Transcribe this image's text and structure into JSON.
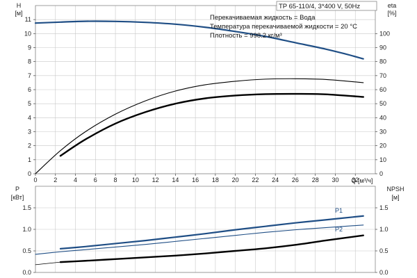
{
  "header": {
    "model": "TP 65-110/4, 3*400 V, 50Hz"
  },
  "info": {
    "line1": "Перекачиваемая жидкость = Вода",
    "line2": "Температура перекачиваемой жидкости = 20 °C",
    "line3": "Плотность = 998.2 кг/м³"
  },
  "colors": {
    "blue": "#1f4e85",
    "black": "#000000",
    "grid": "#c8c8c8",
    "frame": "#888888"
  },
  "chart_data": [
    {
      "type": "line",
      "panel": "top",
      "xlabel": "Q [м³/ч]",
      "ylabel_left": "H\n[м]",
      "ylabel_right": "eta\n[%]",
      "xlim": [
        0,
        34
      ],
      "ylim_left": [
        0,
        12
      ],
      "ylim_right": [
        0,
        120
      ],
      "x_ticks": [
        0,
        2,
        4,
        6,
        8,
        10,
        12,
        14,
        16,
        18,
        20,
        22,
        24,
        26,
        28,
        30,
        32
      ],
      "y_ticks_left": [
        0,
        1,
        2,
        3,
        4,
        5,
        6,
        7,
        8,
        9,
        10,
        11
      ],
      "y_ticks_right": [
        0,
        10,
        20,
        30,
        40,
        50,
        60,
        70,
        80,
        90,
        100
      ],
      "grid": true,
      "series": [
        {
          "axis": "left",
          "color": "blue",
          "width": 2.2,
          "x": [
            0,
            2.5,
            5,
            8,
            11,
            14,
            17,
            20,
            23,
            26,
            29,
            31,
            32.8
          ],
          "y": [
            10.75,
            10.82,
            10.88,
            10.87,
            10.8,
            10.67,
            10.45,
            10.15,
            9.8,
            9.35,
            8.9,
            8.55,
            8.2
          ]
        },
        {
          "axis": "right",
          "color": "black",
          "width": 1.1,
          "x": [
            0,
            2.5,
            5,
            8,
            11,
            14,
            17,
            20,
            23,
            26,
            29,
            32.8
          ],
          "y": [
            0,
            16.5,
            30,
            42.5,
            52,
            59,
            63.5,
            66,
            67.5,
            67.8,
            67.3,
            65
          ]
        },
        {
          "axis": "right",
          "color": "black",
          "width": 2.4,
          "x": [
            2.5,
            5,
            8,
            11,
            14,
            17,
            20,
            23,
            26,
            29,
            32.8
          ],
          "y": [
            12.8,
            24.5,
            35.8,
            44,
            50,
            53.8,
            55.8,
            56.8,
            57,
            56.7,
            54.8
          ]
        }
      ]
    },
    {
      "type": "line",
      "panel": "bottom",
      "ylabel_left": "P\n[кВт]",
      "ylabel_right": "NPSH\n[м]",
      "xlim": [
        0,
        34
      ],
      "ylim_left": [
        0,
        2.0
      ],
      "ylim_right": [
        0,
        2.0
      ],
      "y_ticks_left": [
        "0.0",
        "0.5",
        "1.0",
        "1.5"
      ],
      "y_ticks_right": [
        "0.0",
        "0.5",
        "1.0",
        "1.5"
      ],
      "grid": true,
      "series": [
        {
          "name": "P1",
          "axis": "left",
          "color": "blue",
          "width": 2.2,
          "x": [
            2.5,
            5,
            8,
            11,
            14,
            17,
            20,
            23,
            26,
            29,
            32.8
          ],
          "y": [
            0.55,
            0.6,
            0.67,
            0.74,
            0.82,
            0.9,
            0.99,
            1.07,
            1.15,
            1.22,
            1.31
          ]
        },
        {
          "name": "P2",
          "axis": "left",
          "color": "blue",
          "width": 1.1,
          "x": [
            0,
            2.5,
            5,
            8,
            11,
            14,
            17,
            20,
            23,
            26,
            29,
            32.8
          ],
          "y": [
            0.42,
            0.48,
            0.53,
            0.59,
            0.65,
            0.72,
            0.79,
            0.86,
            0.93,
            0.99,
            1.04,
            1.1
          ]
        },
        {
          "axis": "left",
          "color": "black",
          "width": 2.4,
          "x": [
            2.5,
            5,
            8,
            11,
            14,
            17,
            20,
            23,
            26,
            29,
            32.8
          ],
          "y": [
            0.24,
            0.27,
            0.31,
            0.35,
            0.39,
            0.44,
            0.5,
            0.56,
            0.64,
            0.74,
            0.86
          ]
        },
        {
          "axis": "left",
          "color": "black",
          "width": 0.8,
          "x": [
            0,
            2.5
          ],
          "y": [
            0.18,
            0.24
          ]
        }
      ]
    }
  ]
}
